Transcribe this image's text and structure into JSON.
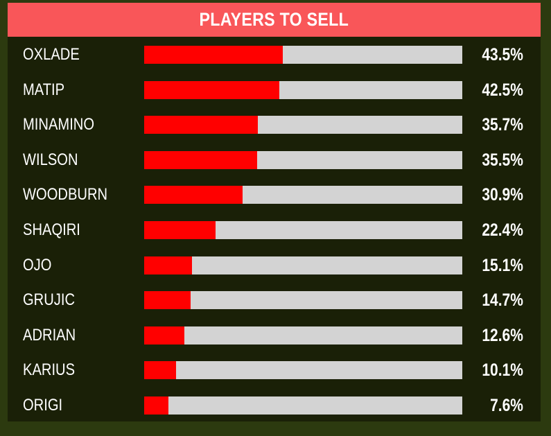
{
  "chart_data": {
    "type": "bar",
    "orientation": "horizontal",
    "title": "PLAYERS TO SELL",
    "categories": [
      "OXLADE",
      "MATIP",
      "MINAMINO",
      "WILSON",
      "WOODBURN",
      "SHAQIRI",
      "OJO",
      "GRUJIC",
      "ADRIAN",
      "KARIUS",
      "ORIGI"
    ],
    "values": [
      43.5,
      42.5,
      35.7,
      35.5,
      30.9,
      22.4,
      15.1,
      14.7,
      12.6,
      10.1,
      7.6
    ],
    "value_labels": [
      "43.5%",
      "42.5%",
      "35.7%",
      "35.5%",
      "30.9%",
      "22.4%",
      "15.1%",
      "14.7%",
      "12.6%",
      "10.1%",
      "7.6%"
    ],
    "xlim": [
      0,
      100
    ],
    "grid": false,
    "legend": "none"
  },
  "colors": {
    "background": "#2c3a0f",
    "panel": "#1a2007",
    "title_bar": "#f95659",
    "bar_fill": "#ff0000",
    "bar_track": "#d3d3d3",
    "text": "#ffffff"
  }
}
